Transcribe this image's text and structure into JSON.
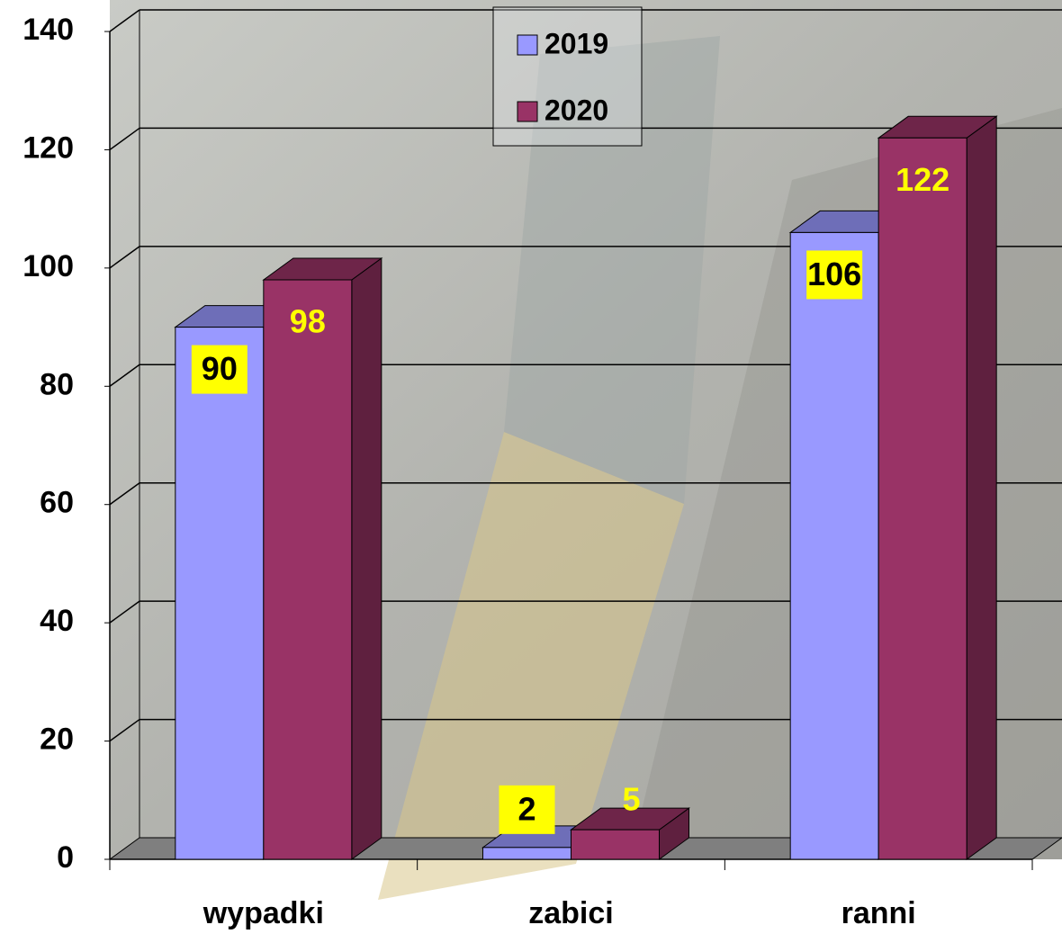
{
  "chart_data": {
    "type": "bar3d",
    "categories": [
      "wypadki",
      "zabici",
      "ranni"
    ],
    "series": [
      {
        "name": "2019",
        "color": "#9999ff",
        "values": [
          90,
          2,
          106
        ]
      },
      {
        "name": "2020",
        "color": "#993366",
        "values": [
          98,
          5,
          122
        ]
      }
    ],
    "ylim": [
      0,
      140
    ],
    "yticks": [
      0,
      20,
      40,
      60,
      80,
      100,
      120,
      140
    ],
    "grid": true,
    "legend": "top"
  }
}
